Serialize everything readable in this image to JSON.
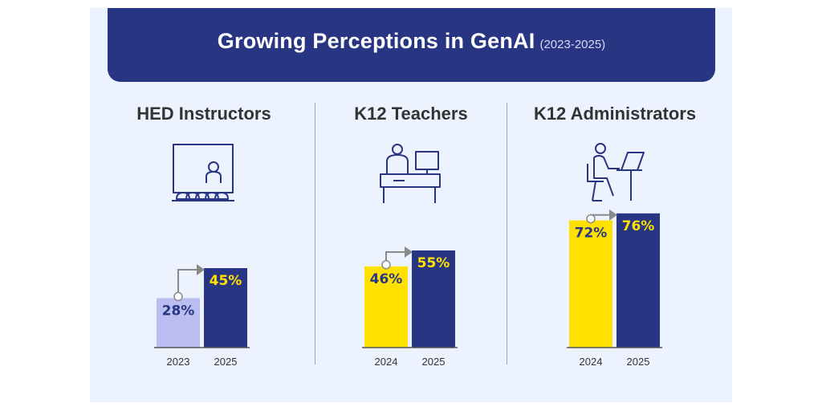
{
  "header": {
    "title": "Growing Perceptions in GenAI",
    "subtitle": "(2023-2025)"
  },
  "colors": {
    "navy": "#283583",
    "yellow": "#ffe100",
    "lavender": "#b9bdf0",
    "axis": "#555555",
    "arrow": "#8a8a8a"
  },
  "chart_data": [
    {
      "type": "bar",
      "title": "HED Instructors",
      "icon": "classroom-icon",
      "categories": [
        "2023",
        "2025"
      ],
      "values": [
        28,
        45
      ],
      "labels": [
        "28%",
        "45%"
      ],
      "bar_colors": [
        "lavender",
        "navy"
      ],
      "label_colors": [
        "navy",
        "yellow"
      ],
      "ylim": [
        0,
        100
      ]
    },
    {
      "type": "bar",
      "title": "K12 Teachers",
      "icon": "teacher-desk-icon",
      "categories": [
        "2024",
        "2025"
      ],
      "values": [
        46,
        55
      ],
      "labels": [
        "46%",
        "55%"
      ],
      "bar_colors": [
        "yellow",
        "navy"
      ],
      "label_colors": [
        "navy",
        "yellow"
      ],
      "ylim": [
        0,
        100
      ]
    },
    {
      "type": "bar",
      "title": "K12 Administrators",
      "icon": "laptop-worker-icon",
      "categories": [
        "2024",
        "2025"
      ],
      "values": [
        72,
        76
      ],
      "labels": [
        "72%",
        "76%"
      ],
      "bar_colors": [
        "yellow",
        "navy"
      ],
      "label_colors": [
        "navy",
        "yellow"
      ],
      "ylim": [
        0,
        100
      ]
    }
  ]
}
